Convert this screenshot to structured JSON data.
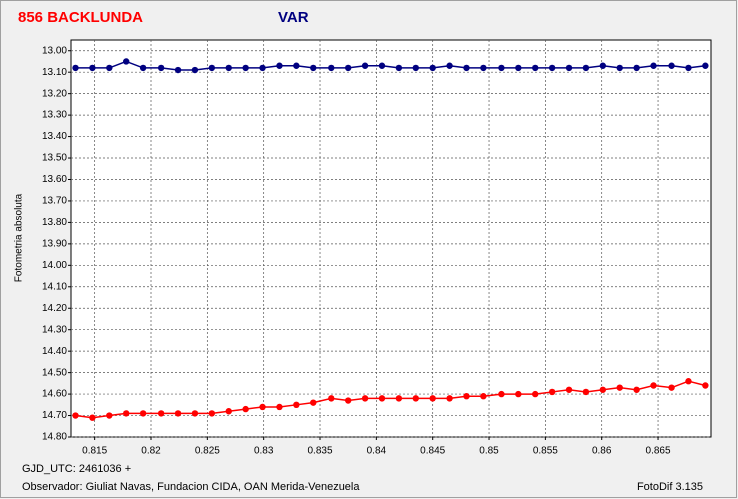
{
  "chart_data": {
    "type": "line",
    "title": "856 BACKLUNDA",
    "title_color": "#ff0000",
    "subtitle": "VAR",
    "subtitle_color": "#000080",
    "y_label": "Fotometria absoluta",
    "x_label": "GJD_UTC: 2461036 +",
    "footer_left": "Observador: Giuliat Navas, Fundacion CIDA, OAN  Merida-Venezuela",
    "footer_right": "FotoDif 3.135",
    "y_inverted": true,
    "grid": true,
    "xlim": [
      0.8129,
      0.8697
    ],
    "ylim": [
      12.95,
      14.8
    ],
    "xticks": [
      0.815,
      0.82,
      0.825,
      0.83,
      0.835,
      0.84,
      0.845,
      0.85,
      0.855,
      0.86,
      0.865
    ],
    "yticks": [
      {
        "value": 13.0,
        "label": "13.00"
      },
      {
        "value": 13.1,
        "label": "13.10"
      },
      {
        "value": 13.2,
        "label": "13.20"
      },
      {
        "value": 13.3,
        "label": "13.30"
      },
      {
        "value": 13.4,
        "label": "13.40"
      },
      {
        "value": 13.5,
        "label": "13.50"
      },
      {
        "value": 13.6,
        "label": "13.60"
      },
      {
        "value": 13.7,
        "label": "13.70"
      },
      {
        "value": 13.8,
        "label": "13.80"
      },
      {
        "value": 13.9,
        "label": "13.90"
      },
      {
        "value": 14.0,
        "label": "14.00"
      },
      {
        "value": 14.1,
        "label": "14.10"
      },
      {
        "value": 14.2,
        "label": "14.20"
      },
      {
        "value": 14.3,
        "label": "14.30"
      },
      {
        "value": 14.4,
        "label": "14.40"
      },
      {
        "value": 14.5,
        "label": "14.50"
      },
      {
        "value": 14.6,
        "label": "14.60"
      },
      {
        "value": 14.7,
        "label": "14.70"
      },
      {
        "value": 14.8,
        "label": "14.80"
      }
    ],
    "x": [
      0.8133,
      0.8148,
      0.8163,
      0.8178,
      0.8193,
      0.8209,
      0.8224,
      0.8239,
      0.8254,
      0.8269,
      0.8284,
      0.8299,
      0.8314,
      0.8329,
      0.8344,
      0.836,
      0.8375,
      0.839,
      0.8405,
      0.842,
      0.8435,
      0.845,
      0.8465,
      0.848,
      0.8495,
      0.8511,
      0.8526,
      0.8541,
      0.8556,
      0.8571,
      0.8586,
      0.8601,
      0.8616,
      0.8631,
      0.8646,
      0.8662,
      0.8677,
      0.8692
    ],
    "series": [
      {
        "color": "#000080",
        "values": [
          13.08,
          13.08,
          13.08,
          13.05,
          13.08,
          13.08,
          13.09,
          13.09,
          13.08,
          13.08,
          13.08,
          13.08,
          13.07,
          13.07,
          13.08,
          13.08,
          13.08,
          13.07,
          13.07,
          13.08,
          13.08,
          13.08,
          13.07,
          13.08,
          13.08,
          13.08,
          13.08,
          13.08,
          13.08,
          13.08,
          13.08,
          13.07,
          13.08,
          13.08,
          13.07,
          13.07,
          13.08,
          13.07
        ]
      },
      {
        "color": "#ff0000",
        "values": [
          14.7,
          14.71,
          14.7,
          14.69,
          14.69,
          14.69,
          14.69,
          14.69,
          14.69,
          14.68,
          14.67,
          14.66,
          14.66,
          14.65,
          14.64,
          14.62,
          14.63,
          14.62,
          14.62,
          14.62,
          14.62,
          14.62,
          14.62,
          14.61,
          14.61,
          14.6,
          14.6,
          14.6,
          14.59,
          14.58,
          14.59,
          14.58,
          14.57,
          14.58,
          14.56,
          14.57,
          14.54,
          14.56
        ]
      }
    ]
  }
}
